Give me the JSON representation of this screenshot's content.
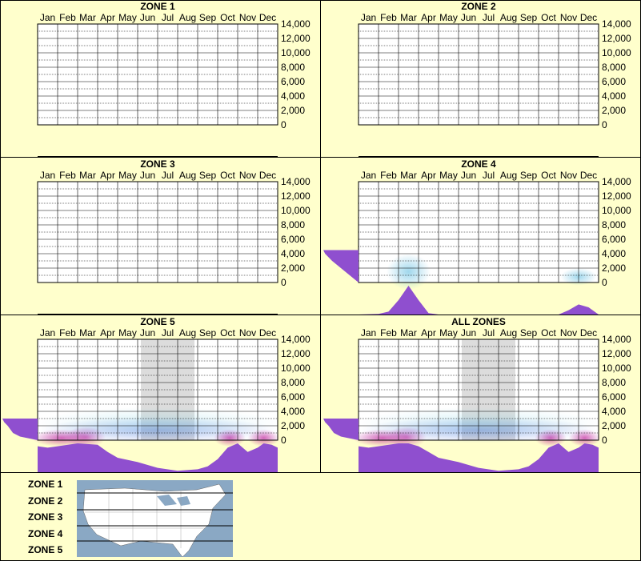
{
  "chart_data": [
    {
      "type": "heatmap",
      "title": "ZONE 1",
      "categories": [
        "Jan",
        "Feb",
        "Mar",
        "Apr",
        "May",
        "Jun",
        "Jul",
        "Aug",
        "Sep",
        "Oct",
        "Nov",
        "Dec"
      ],
      "yticks": [
        "14,000",
        "12,000",
        "10,000",
        "8,000",
        "6,000",
        "4,000",
        "2,000",
        "0"
      ],
      "ylim": [
        0,
        14000
      ],
      "elev_profile": [],
      "month_density": [],
      "hotspots": [],
      "gray_months": []
    },
    {
      "type": "heatmap",
      "title": "ZONE 2",
      "categories": [
        "Jan",
        "Feb",
        "Mar",
        "Apr",
        "May",
        "Jun",
        "Jul",
        "Aug",
        "Sep",
        "Oct",
        "Nov",
        "Dec"
      ],
      "yticks": [
        "14,000",
        "12,000",
        "10,000",
        "8,000",
        "6,000",
        "4,000",
        "2,000",
        "0"
      ],
      "ylim": [
        0,
        14000
      ],
      "elev_profile": [],
      "month_density": [],
      "hotspots": [],
      "gray_months": []
    },
    {
      "type": "heatmap",
      "title": "ZONE 3",
      "categories": [
        "Jan",
        "Feb",
        "Mar",
        "Apr",
        "May",
        "Jun",
        "Jul",
        "Aug",
        "Sep",
        "Oct",
        "Nov",
        "Dec"
      ],
      "yticks": [
        "14,000",
        "12,000",
        "10,000",
        "8,000",
        "6,000",
        "4,000",
        "2,000",
        "0"
      ],
      "ylim": [
        0,
        14000
      ],
      "elev_profile": [],
      "month_density": [],
      "hotspots": [],
      "gray_months": []
    },
    {
      "type": "heatmap",
      "title": "ZONE 4",
      "categories": [
        "Jan",
        "Feb",
        "Mar",
        "Apr",
        "May",
        "Jun",
        "Jul",
        "Aug",
        "Sep",
        "Oct",
        "Nov",
        "Dec"
      ],
      "yticks": [
        "14,000",
        "12,000",
        "10,000",
        "8,000",
        "6,000",
        "4,000",
        "2,000",
        "0"
      ],
      "ylim": [
        0,
        14000
      ],
      "elev_profile": [
        [
          0,
          0
        ],
        [
          1000,
          0.25
        ],
        [
          2000,
          0.5
        ],
        [
          3000,
          0.75
        ],
        [
          4000,
          0.95
        ],
        [
          4500,
          1
        ]
      ],
      "month_density": [
        [
          0,
          0
        ],
        [
          1,
          0.02
        ],
        [
          1.5,
          0.1
        ],
        [
          2,
          0.5
        ],
        [
          2.5,
          1
        ],
        [
          3,
          0.5
        ],
        [
          3.5,
          0.05
        ],
        [
          4,
          0
        ],
        [
          10,
          0
        ],
        [
          10.5,
          0.15
        ],
        [
          11,
          0.35
        ],
        [
          11.5,
          0.25
        ],
        [
          12,
          0
        ]
      ],
      "hotspots": [
        {
          "month": 2.5,
          "elev": 1500,
          "rm": 1.1,
          "re": 2500,
          "color": "#2ca7d6",
          "a": 0.45
        },
        {
          "month": 11.0,
          "elev": 800,
          "rm": 0.9,
          "re": 1200,
          "color": "#2ca7d6",
          "a": 0.45
        }
      ],
      "gray_months": []
    },
    {
      "type": "heatmap",
      "title": "ZONE 5",
      "categories": [
        "Jan",
        "Feb",
        "Mar",
        "Apr",
        "May",
        "Jun",
        "Jul",
        "Aug",
        "Sep",
        "Oct",
        "Nov",
        "Dec"
      ],
      "yticks": [
        "14,000",
        "12,000",
        "10,000",
        "8,000",
        "6,000",
        "4,000",
        "2,000",
        "0"
      ],
      "ylim": [
        0,
        14000
      ],
      "elev_profile": [
        [
          0,
          0
        ],
        [
          500,
          0.5
        ],
        [
          1000,
          0.7
        ],
        [
          2000,
          0.85
        ],
        [
          2500,
          0.95
        ],
        [
          3000,
          1
        ]
      ],
      "month_density": [
        [
          0,
          0.9
        ],
        [
          0.5,
          0.85
        ],
        [
          1,
          0.9
        ],
        [
          2,
          1
        ],
        [
          3,
          0.95
        ],
        [
          3.5,
          0.7
        ],
        [
          4,
          0.5
        ],
        [
          5,
          0.35
        ],
        [
          6,
          0.15
        ],
        [
          7,
          0.05
        ],
        [
          8,
          0.1
        ],
        [
          8.5,
          0.2
        ],
        [
          9,
          0.45
        ],
        [
          9.5,
          0.85
        ],
        [
          10,
          1
        ],
        [
          10.5,
          0.7
        ],
        [
          11,
          0.85
        ],
        [
          11.3,
          1
        ],
        [
          11.7,
          0.95
        ],
        [
          12,
          0.85
        ]
      ],
      "hotspots": [
        {
          "month": 1.2,
          "elev": 300,
          "rm": 1.5,
          "re": 1200,
          "color": "#b4008c",
          "a": 0.6
        },
        {
          "month": 2.4,
          "elev": 400,
          "rm": 1.0,
          "re": 1500,
          "color": "#b4008c",
          "a": 0.5
        },
        {
          "month": 9.6,
          "elev": 300,
          "rm": 0.8,
          "re": 1200,
          "color": "#b4008c",
          "a": 0.6
        },
        {
          "month": 11.3,
          "elev": 300,
          "rm": 0.8,
          "re": 1200,
          "color": "#b4008c",
          "a": 0.6
        },
        {
          "month": 6,
          "elev": 1400,
          "rm": 6,
          "re": 1800,
          "color": "#1a4bd6",
          "a": 0.35
        },
        {
          "month": 6,
          "elev": 2400,
          "rm": 6,
          "re": 2200,
          "color": "#8fd8e8",
          "a": 0.35
        }
      ],
      "gray_months": [
        5,
        6,
        7
      ]
    },
    {
      "type": "heatmap",
      "title": "ALL ZONES",
      "categories": [
        "Jan",
        "Feb",
        "Mar",
        "Apr",
        "May",
        "Jun",
        "Jul",
        "Aug",
        "Sep",
        "Oct",
        "Nov",
        "Dec"
      ],
      "yticks": [
        "14,000",
        "12,000",
        "10,000",
        "8,000",
        "6,000",
        "4,000",
        "2,000",
        "0"
      ],
      "ylim": [
        0,
        14000
      ],
      "elev_profile": [
        [
          0,
          0
        ],
        [
          500,
          0.5
        ],
        [
          1000,
          0.7
        ],
        [
          2000,
          0.85
        ],
        [
          2500,
          0.95
        ],
        [
          3000,
          1
        ]
      ],
      "month_density": [
        [
          0,
          0.9
        ],
        [
          0.5,
          0.85
        ],
        [
          1,
          0.9
        ],
        [
          2,
          1
        ],
        [
          2.5,
          1
        ],
        [
          3,
          0.9
        ],
        [
          3.5,
          0.7
        ],
        [
          4,
          0.5
        ],
        [
          5,
          0.35
        ],
        [
          6,
          0.15
        ],
        [
          7,
          0.05
        ],
        [
          8,
          0.1
        ],
        [
          8.5,
          0.2
        ],
        [
          9,
          0.45
        ],
        [
          9.5,
          0.85
        ],
        [
          10,
          1
        ],
        [
          10.5,
          0.7
        ],
        [
          11,
          0.85
        ],
        [
          11.3,
          1
        ],
        [
          11.7,
          0.95
        ],
        [
          12,
          0.85
        ]
      ],
      "hotspots": [
        {
          "month": 1.2,
          "elev": 300,
          "rm": 1.5,
          "re": 1200,
          "color": "#b4008c",
          "a": 0.6
        },
        {
          "month": 2.4,
          "elev": 400,
          "rm": 1.0,
          "re": 1500,
          "color": "#b4008c",
          "a": 0.5
        },
        {
          "month": 9.6,
          "elev": 300,
          "rm": 0.8,
          "re": 1200,
          "color": "#b4008c",
          "a": 0.6
        },
        {
          "month": 11.3,
          "elev": 300,
          "rm": 0.8,
          "re": 1200,
          "color": "#b4008c",
          "a": 0.6
        },
        {
          "month": 6,
          "elev": 1400,
          "rm": 6,
          "re": 1800,
          "color": "#1a4bd6",
          "a": 0.35
        },
        {
          "month": 6,
          "elev": 2400,
          "rm": 6,
          "re": 2200,
          "color": "#8fd8e8",
          "a": 0.35
        }
      ],
      "gray_months": [
        5,
        6,
        7
      ]
    }
  ],
  "legend": {
    "zones": [
      "ZONE 1",
      "ZONE 2",
      "ZONE 3",
      "ZONE 4",
      "ZONE 5"
    ],
    "map_icon": "us-map-zones"
  },
  "colors": {
    "background": "#ffffcc",
    "plot": "#ffffff",
    "profile": "#8f4fcf",
    "gray_band": "#dcdcdc",
    "map_water": "#8aa8c4",
    "map_land": "#ffffff"
  }
}
